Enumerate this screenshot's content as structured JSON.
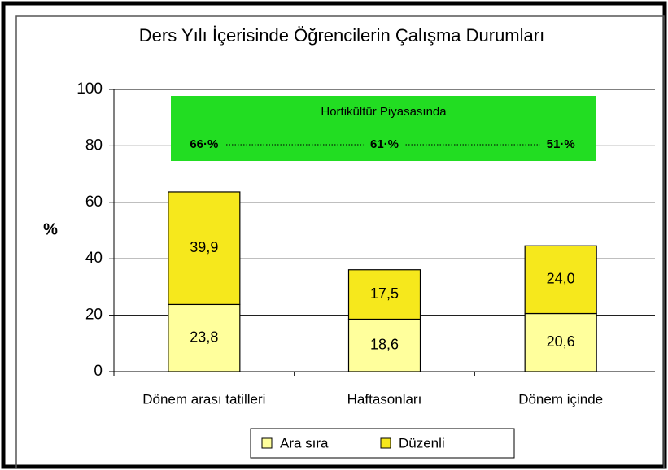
{
  "chart_data": {
    "type": "stacked_bar",
    "title": "Ders Yılı İçerisinde Öğrencilerin Çalışma Durumları",
    "y_label": "%",
    "categories": [
      "Dönem arası tatilleri",
      "Haftasonları",
      "Dönem içinde"
    ],
    "series": [
      {
        "name": "Ara sıra",
        "color": "#ffff9c",
        "values": [
          23.8,
          18.6,
          20.6
        ],
        "value_labels": [
          "23,8",
          "18,6",
          "20,6"
        ]
      },
      {
        "name": "Düzenli",
        "color": "#f6e81c",
        "values": [
          39.9,
          17.5,
          24.0
        ],
        "value_labels": [
          "39,9",
          "17,5",
          "24,0"
        ]
      }
    ],
    "ylim": [
      0,
      100
    ],
    "yticks": [
      0,
      20,
      40,
      60,
      80,
      100
    ],
    "grid": true,
    "legend": "bottom",
    "annotation": {
      "title": "Hortikültür Piyasasında",
      "labels": [
        "66·%",
        "61·%",
        "51·%"
      ],
      "color": "#22dd22"
    }
  }
}
